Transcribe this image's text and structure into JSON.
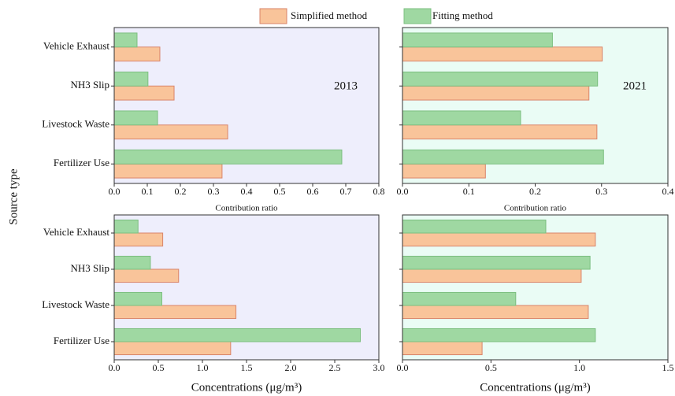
{
  "ylabel": "Source type",
  "legend": [
    {
      "name": "Simplified method",
      "color": "#f9c49a"
    },
    {
      "name": "Fitting method",
      "color": "#9fd8a2"
    }
  ],
  "chart_data": [
    {
      "type": "bar",
      "orientation": "horizontal",
      "background": "#eeeefc",
      "annotation": "2013",
      "xlabel": "Contribution ratio",
      "categories": [
        "Vehicle Exhaust",
        "NH3 Slip",
        "Livestock Waste",
        "Fertilizer Use"
      ],
      "series": [
        {
          "values": [
            0.138,
            0.181,
            0.343,
            0.326
          ]
        },
        {
          "values": [
            0.069,
            0.102,
            0.131,
            0.688
          ]
        }
      ],
      "xlim": [
        0,
        0.8
      ],
      "xticks": [
        {
          "value": 0,
          "label": "0.0"
        },
        0.1,
        0.2,
        0.3,
        0.4,
        0.5,
        0.6,
        0.7,
        0.8
      ]
    },
    {
      "type": "bar",
      "orientation": "horizontal",
      "background": "#eafcf5",
      "annotation": "2021",
      "xlabel": "Contribution ratio",
      "categories": [
        "Vehicle Exhaust",
        "NH3 Slip",
        "Livestock Waste",
        "Fertilizer Use"
      ],
      "series": [
        {
          "values": [
            0.301,
            0.281,
            0.293,
            0.125
          ]
        },
        {
          "values": [
            0.226,
            0.294,
            0.178,
            0.303
          ]
        }
      ],
      "xlim": [
        0,
        0.4
      ],
      "xticks": [
        {
          "value": 0,
          "label": "0.0"
        },
        0.1,
        0.2,
        0.3,
        0.4
      ]
    },
    {
      "type": "bar",
      "orientation": "horizontal",
      "background": "#eeeefc",
      "xlabel": "Concentrations (μg/m³)",
      "categories": [
        "Vehicle Exhaust",
        "NH3 Slip",
        "Livestock Waste",
        "Fertilizer Use"
      ],
      "series": [
        {
          "values": [
            0.55,
            0.73,
            1.38,
            1.32
          ]
        },
        {
          "values": [
            0.27,
            0.41,
            0.54,
            2.79
          ]
        }
      ],
      "xlim": [
        0,
        3
      ],
      "xticks": [
        {
          "value": 0,
          "label": "0.0"
        },
        0.5,
        {
          "value": 1,
          "label": "1.0"
        },
        1.5,
        {
          "value": 2,
          "label": "2.0"
        },
        2.5,
        {
          "value": 3,
          "label": "3.0"
        }
      ]
    },
    {
      "type": "bar",
      "orientation": "horizontal",
      "background": "#eafcf5",
      "xlabel": "Concentrations (μg/m³)",
      "categories": [
        "Vehicle Exhaust",
        "NH3 Slip",
        "Livestock Waste",
        "Fertilizer Use"
      ],
      "series": [
        {
          "values": [
            1.09,
            1.01,
            1.05,
            0.45
          ]
        },
        {
          "values": [
            0.81,
            1.06,
            0.64,
            1.09
          ]
        }
      ],
      "xlim": [
        0,
        1.5
      ],
      "xticks": [
        {
          "value": 0,
          "label": "0.0"
        },
        0.5,
        {
          "value": 1,
          "label": "1.0"
        },
        1.5
      ]
    }
  ]
}
